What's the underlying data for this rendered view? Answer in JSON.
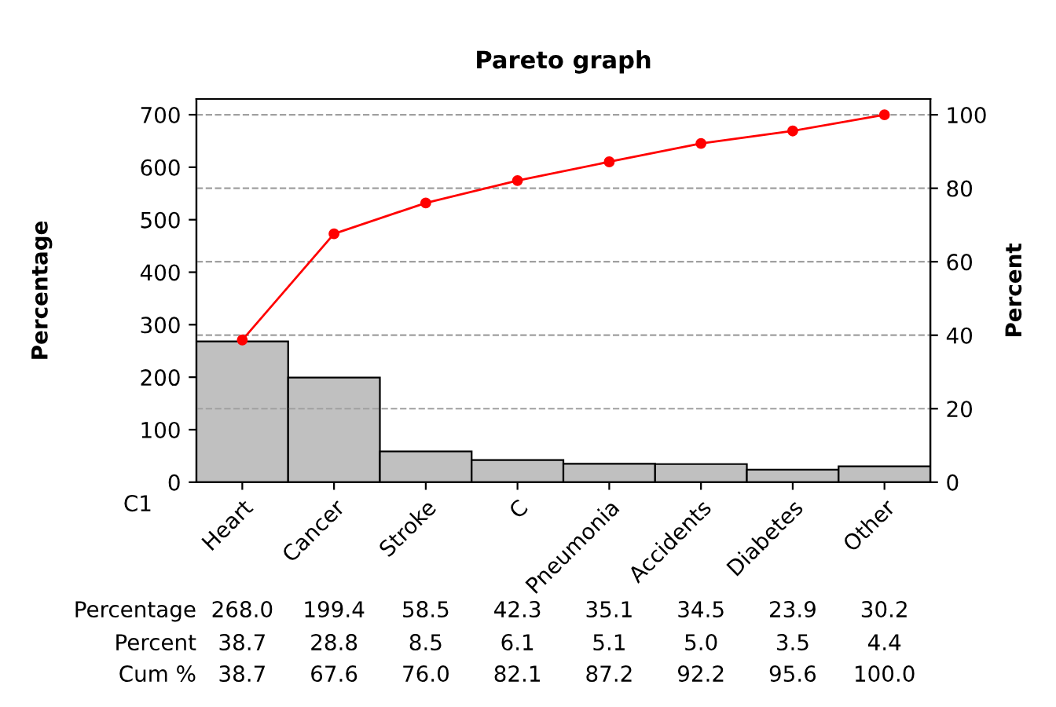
{
  "chart_data": {
    "type": "bar",
    "title": "Pareto graph",
    "xlabel": "C1",
    "ylabel": "Percentage",
    "y2label": "Percent",
    "categories": [
      "Heart",
      "Cancer",
      "Stroke",
      "C",
      "Pneumonia",
      "Accidents",
      "Diabetes",
      "Other"
    ],
    "series": [
      {
        "color": "#c0c0c0",
        "values": [
          268.0,
          199.4,
          58.5,
          42.3,
          35.1,
          34.5,
          23.9,
          30.2
        ],
        "value_labels": [
          "268.0",
          "199.4",
          "58.5",
          "42.3",
          "35.1",
          "34.5",
          "23.9",
          "30.2"
        ]
      },
      {
        "type": "line",
        "axis": "y2",
        "color": "#ff0000",
        "marker": "circle",
        "values": [
          38.7,
          67.6,
          76.0,
          82.1,
          87.2,
          92.2,
          95.6,
          100.0
        ],
        "value_labels": [
          "38.7",
          "67.6",
          "76.0",
          "82.1",
          "87.2",
          "92.2",
          "95.6",
          "100.0"
        ]
      }
    ],
    "annotations": [
      "Percentage",
      "Percent",
      "Cum %",
      "38.7",
      "28.8",
      "8.5",
      "6.1",
      "5.1",
      "5.0",
      "3.5",
      "4.4"
    ],
    "ylim": [
      0,
      730
    ],
    "yticks": [
      0,
      100,
      200,
      300,
      400,
      500,
      600,
      700
    ],
    "y2lim": [
      0,
      104.3
    ],
    "y2ticks": [
      0,
      20,
      40,
      60,
      80,
      100
    ],
    "ref_lines": [
      {
        "axis": "y2",
        "value": 20,
        "color": "#a0a0a0",
        "line_style": "dashed"
      },
      {
        "axis": "y2",
        "value": 40,
        "color": "#a0a0a0",
        "line_style": "dashed"
      },
      {
        "axis": "y2",
        "value": 60,
        "color": "#a0a0a0",
        "line_style": "dashed"
      },
      {
        "axis": "y2",
        "value": 80,
        "color": "#a0a0a0",
        "line_style": "dashed"
      },
      {
        "axis": "y2",
        "value": 100,
        "color": "#a0a0a0",
        "line_style": "dashed"
      }
    ],
    "grid": false,
    "legend": false
  }
}
